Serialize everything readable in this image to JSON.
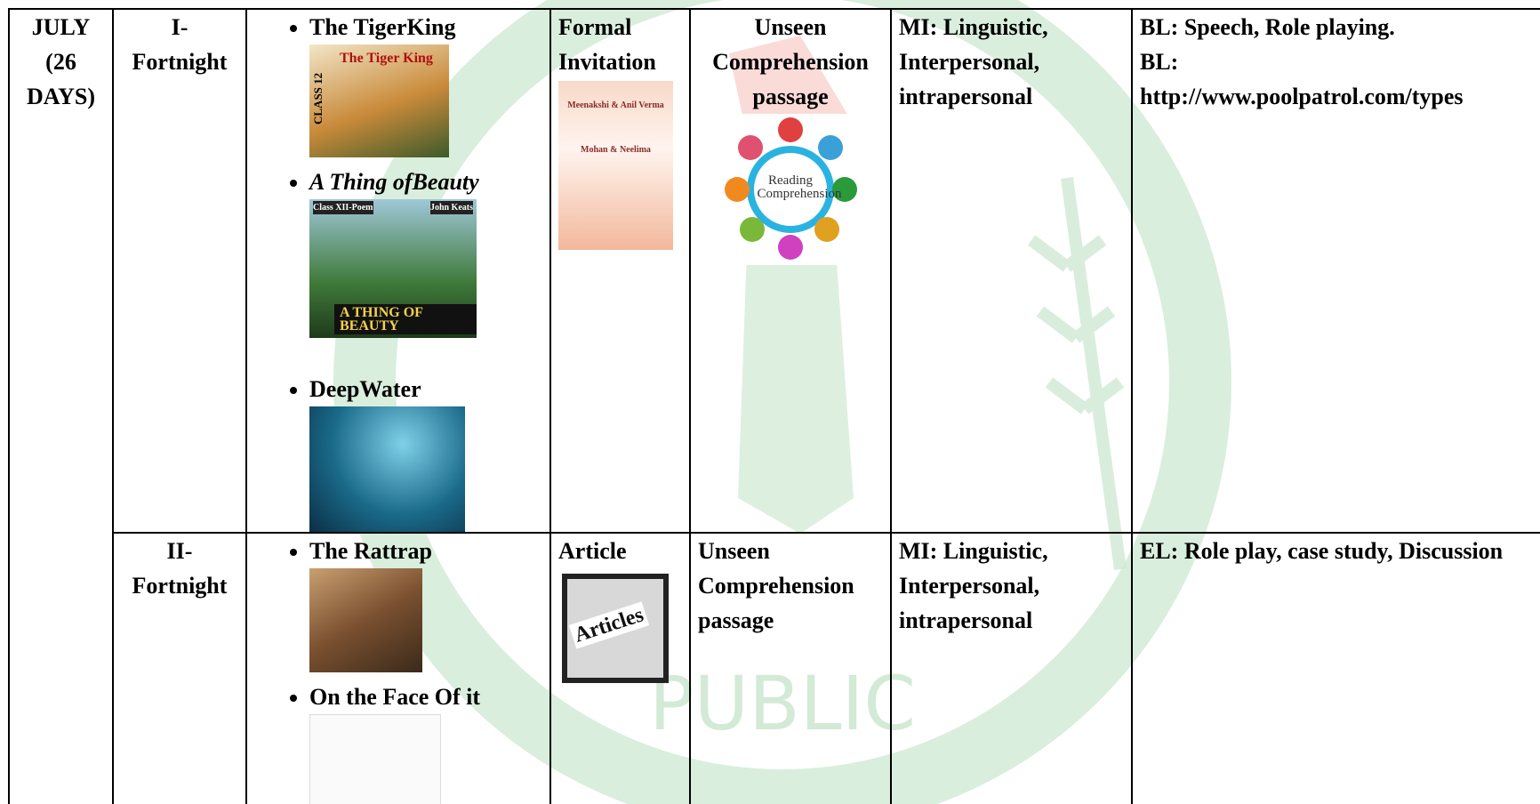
{
  "table": {
    "rows": [
      {
        "month": "JULY (26 DAYS)",
        "fortnight": "I- Fortnight",
        "lessons": [
          {
            "title": "The TigerKing",
            "image_text": [
              "The Tiger King",
              "CLASS 12"
            ]
          },
          {
            "title": "A Thing ofBeauty",
            "image_text": [
              "Class XII-Poem",
              "John Keats",
              "A THING OF BEAUTY"
            ]
          },
          {
            "title": "DeepWater"
          }
        ],
        "writing": {
          "title": "Formal Invitation",
          "image_text": [
            "Meenakshi & Anil Verma",
            "Mohan & Neelima"
          ]
        },
        "reading": {
          "title": "Unseen Comprehension passage",
          "image_text": [
            "Reading Comprehension"
          ]
        },
        "mi": "MI: Linguistic, Interpersonal, intrapersonal",
        "pedagogy": [
          "BL: Speech, Role playing.",
          "BL:",
          "http://www.poolpatrol.com/types"
        ]
      },
      {
        "fortnight": "II- Fortnight",
        "lessons": [
          {
            "title": "The Rattrap"
          },
          {
            "title": "On the Face Of it"
          }
        ],
        "writing": {
          "title": "Article",
          "image_text": [
            "Articles"
          ]
        },
        "reading": {
          "title": "Unseen Comprehension passage"
        },
        "mi": "MI: Linguistic, Interpersonal, intrapersonal",
        "pedagogy": [
          "EL: Role play, case study, Discussion"
        ]
      }
    ]
  },
  "watermark": "PUBLIC"
}
